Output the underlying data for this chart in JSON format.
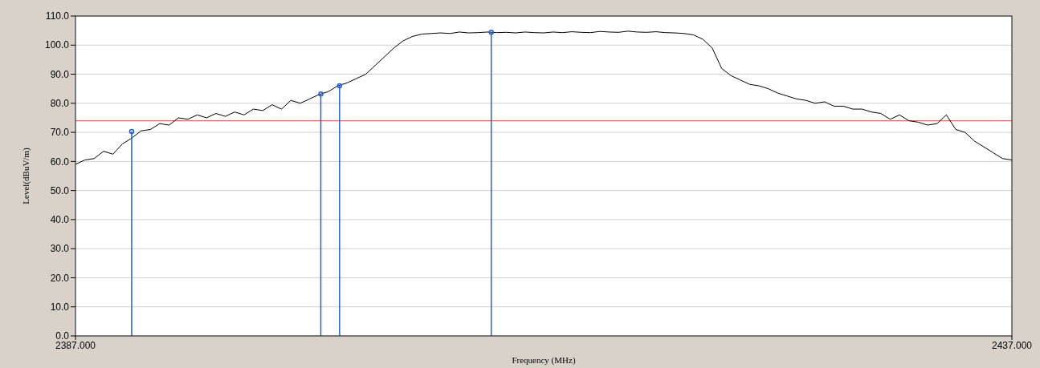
{
  "chart_data": {
    "type": "line",
    "xlabel": "Frequency (MHz)",
    "ylabel": "Level(dBuV/m)",
    "xlim": [
      2387,
      2437
    ],
    "xticks": [
      {
        "value": 2387,
        "label": "2387.000"
      },
      {
        "value": 2437,
        "label": "2437.000"
      }
    ],
    "ylim": [
      0,
      110
    ],
    "yticks": [
      {
        "value": 0,
        "label": "0.0"
      },
      {
        "value": 10,
        "label": "10.0"
      },
      {
        "value": 20,
        "label": "20.0"
      },
      {
        "value": 30,
        "label": "30.0"
      },
      {
        "value": 40,
        "label": "40.0"
      },
      {
        "value": 50,
        "label": "50.0"
      },
      {
        "value": 60,
        "label": "60.0"
      },
      {
        "value": 70,
        "label": "70.0"
      },
      {
        "value": 80,
        "label": "80.0"
      },
      {
        "value": 90,
        "label": "90.0"
      },
      {
        "value": 100,
        "label": "100.0"
      },
      {
        "value": 110,
        "label": "110.0"
      }
    ],
    "grid": "y",
    "ref_lines": [
      {
        "axis": "y",
        "value": 74,
        "color": "#ff6060"
      }
    ],
    "series": [
      {
        "color": "#000000",
        "x": [
          2387,
          2387.5,
          2388,
          2388.5,
          2389,
          2389.5,
          2390,
          2390.5,
          2391,
          2391.5,
          2392,
          2392.5,
          2393,
          2393.5,
          2394,
          2394.5,
          2395,
          2395.5,
          2396,
          2396.5,
          2397,
          2397.5,
          2398,
          2398.5,
          2399,
          2399.5,
          2400,
          2400.5,
          2401,
          2401.5,
          2402,
          2402.5,
          2403,
          2403.5,
          2404,
          2404.5,
          2405,
          2405.5,
          2406,
          2406.5,
          2407,
          2407.5,
          2408,
          2408.5,
          2409,
          2409.5,
          2410,
          2410.5,
          2411,
          2411.5,
          2412,
          2412.5,
          2413,
          2413.5,
          2414,
          2414.5,
          2415,
          2415.5,
          2416,
          2416.5,
          2417,
          2417.5,
          2418,
          2418.5,
          2419,
          2419.5,
          2420,
          2420.5,
          2421,
          2421.5,
          2422,
          2422.5,
          2423,
          2423.5,
          2424,
          2424.5,
          2425,
          2425.5,
          2426,
          2426.5,
          2427,
          2427.5,
          2428,
          2428.5,
          2429,
          2429.5,
          2430,
          2430.5,
          2431,
          2431.5,
          2432,
          2432.5,
          2433,
          2433.5,
          2434,
          2434.5,
          2435,
          2435.5,
          2436,
          2436.5,
          2437
        ],
        "values": [
          59,
          60.5,
          61,
          63.5,
          62.5,
          66,
          68,
          70.5,
          71,
          73,
          72.5,
          75,
          74.5,
          76,
          75,
          76.5,
          75.5,
          77,
          76,
          78,
          77.5,
          79.5,
          78,
          81,
          80,
          81.5,
          83,
          84,
          86,
          87,
          88.5,
          90,
          93,
          96,
          99,
          101.5,
          103,
          103.8,
          104,
          104.2,
          104,
          104.5,
          104.2,
          104.3,
          104.5,
          104.3,
          104.4,
          104.2,
          104.5,
          104.3,
          104.2,
          104.5,
          104.3,
          104.6,
          104.4,
          104.3,
          104.7,
          104.5,
          104.4,
          104.8,
          104.5,
          104.4,
          104.6,
          104.3,
          104.2,
          104,
          103.5,
          102,
          99,
          92,
          89.5,
          88,
          86.5,
          86,
          85,
          83.5,
          82.5,
          81.5,
          81,
          80,
          80.5,
          79,
          79,
          78,
          78,
          77,
          76.5,
          74.5,
          76,
          74,
          73.5,
          72.5,
          73,
          76,
          71,
          70,
          67,
          65,
          63,
          61,
          60.5
        ]
      },
      {
        "type": "lollipop",
        "color": "#1f5fe0",
        "marker": "circle",
        "x": [
          2390,
          2400.1,
          2401.1,
          2409.2
        ],
        "values": [
          70.3,
          83.2,
          86,
          104.4
        ]
      }
    ]
  }
}
